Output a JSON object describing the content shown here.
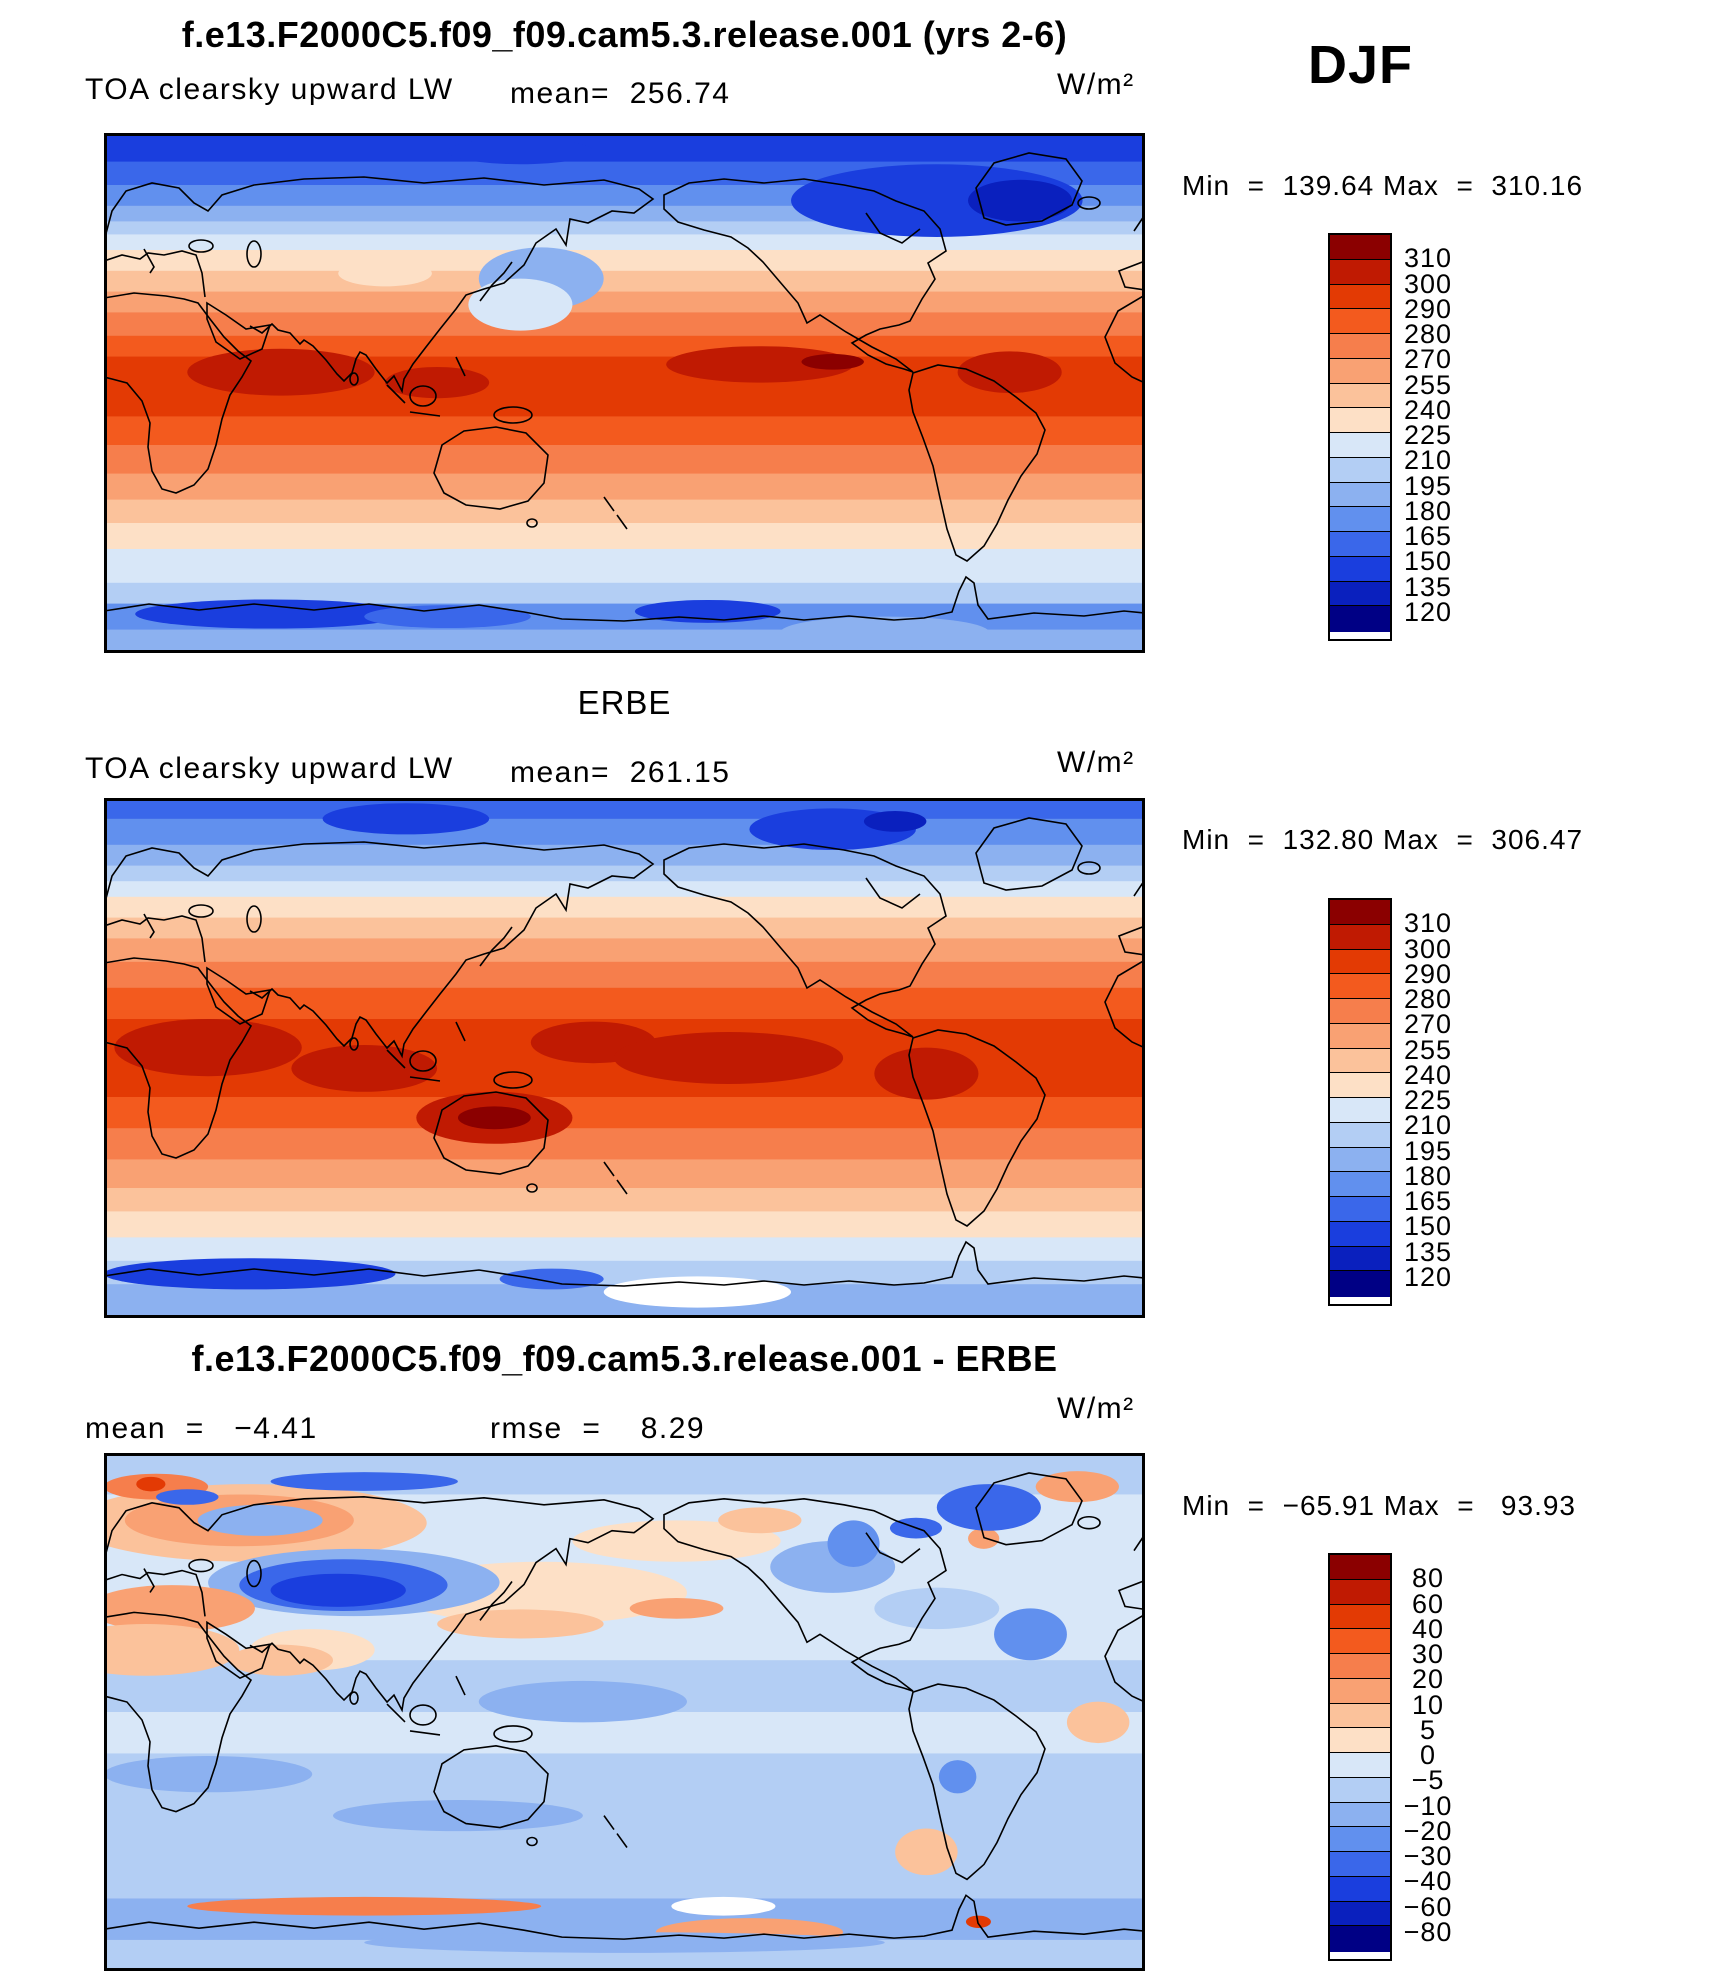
{
  "season_label": "DJF",
  "palette": [
    "#8B0000",
    "#C01A02",
    "#E33A04",
    "#F35A1E",
    "#F67E4C",
    "#F9A173",
    "#FBC29B",
    "#FDE0C6",
    "#D8E7F8",
    "#B3CEF4",
    "#8CB1F0",
    "#6190EE",
    "#3A67EA",
    "#1A3EDE",
    "#0A20BE",
    "#000085"
  ],
  "panel_model": {
    "title": "f.e13.F2000C5.f09_f09.cam5.3.release.001 (yrs 2-6)",
    "variable": "TOA clearsky upward LW",
    "mean_text": "mean=  256.74",
    "units": "W/m²",
    "minmax_text": "Min  =  139.64 Max  =  310.16",
    "levels": [
      "310",
      "300",
      "290",
      "280",
      "270",
      "255",
      "240",
      "225",
      "210",
      "195",
      "180",
      "165",
      "150",
      "135",
      "120"
    ]
  },
  "panel_obs": {
    "title": "ERBE",
    "variable": "TOA clearsky upward LW",
    "mean_text": "mean=  261.15",
    "units": "W/m²",
    "minmax_text": "Min  =  132.80 Max  =  306.47",
    "levels": [
      "310",
      "300",
      "290",
      "280",
      "270",
      "255",
      "240",
      "225",
      "210",
      "195",
      "180",
      "165",
      "150",
      "135",
      "120"
    ]
  },
  "panel_diff": {
    "title": "f.e13.F2000C5.f09_f09.cam5.3.release.001 - ERBE",
    "mean_text": "mean  =   −4.41",
    "rmse_text": "rmse  =    8.29",
    "units": "W/m²",
    "minmax_text": "Min  =  −65.91 Max  =   93.93",
    "levels": [
      "80",
      "60",
      "40",
      "30",
      "20",
      "10",
      "5",
      "0",
      "−5",
      "−10",
      "−20",
      "−30",
      "−40",
      "−60",
      "−80"
    ]
  },
  "chart_data": [
    {
      "type": "heatmap",
      "subtype": "filled-contour global map",
      "title": "f.e13.F2000C5.f09_f09.cam5.3.release.001 (yrs 2-6)",
      "variable": "TOA clearsky upward LW",
      "season": "DJF",
      "units": "W/m²",
      "mean": 256.74,
      "min": 139.64,
      "max": 310.16,
      "contour_levels": [
        120,
        135,
        150,
        165,
        180,
        195,
        210,
        225,
        240,
        255,
        270,
        280,
        290,
        300,
        310
      ],
      "projection": "equirectangular, lon 0-360, lat -90-90",
      "colormap": "16-step blue-white-red, high values red over tropics, low values blue at poles",
      "legend_position": "right vertical colorbar"
    },
    {
      "type": "heatmap",
      "subtype": "filled-contour global map",
      "title": "ERBE",
      "variable": "TOA clearsky upward LW",
      "season": "DJF",
      "units": "W/m²",
      "mean": 261.15,
      "min": 132.8,
      "max": 306.47,
      "contour_levels": [
        120,
        135,
        150,
        165,
        180,
        195,
        210,
        225,
        240,
        255,
        270,
        280,
        290,
        300,
        310
      ],
      "projection": "equirectangular, lon 0-360, lat -90-90",
      "colormap": "16-step blue-white-red, high values red over tropics and Australia, low values blue at poles",
      "legend_position": "right vertical colorbar"
    },
    {
      "type": "heatmap",
      "subtype": "filled-contour global difference map",
      "title": "f.e13.F2000C5.f09_f09.cam5.3.release.001 - ERBE",
      "variable": "TOA clearsky upward LW difference (model minus ERBE)",
      "season": "DJF",
      "units": "W/m²",
      "mean": -4.41,
      "rmse": 8.29,
      "min": -65.91,
      "max": 93.93,
      "contour_levels": [
        -80,
        -60,
        -40,
        -30,
        -20,
        -10,
        -5,
        0,
        5,
        10,
        20,
        30,
        40,
        60,
        80
      ],
      "projection": "equirectangular, lon 0-360, lat -90-90",
      "colormap": "16-step blue-white-red, mostly pale blue (small negative bias) with orange patches over NW Eurasia, N Africa and Antarctic coast, strong negative blob over Tibet",
      "legend_position": "right vertical colorbar"
    }
  ]
}
